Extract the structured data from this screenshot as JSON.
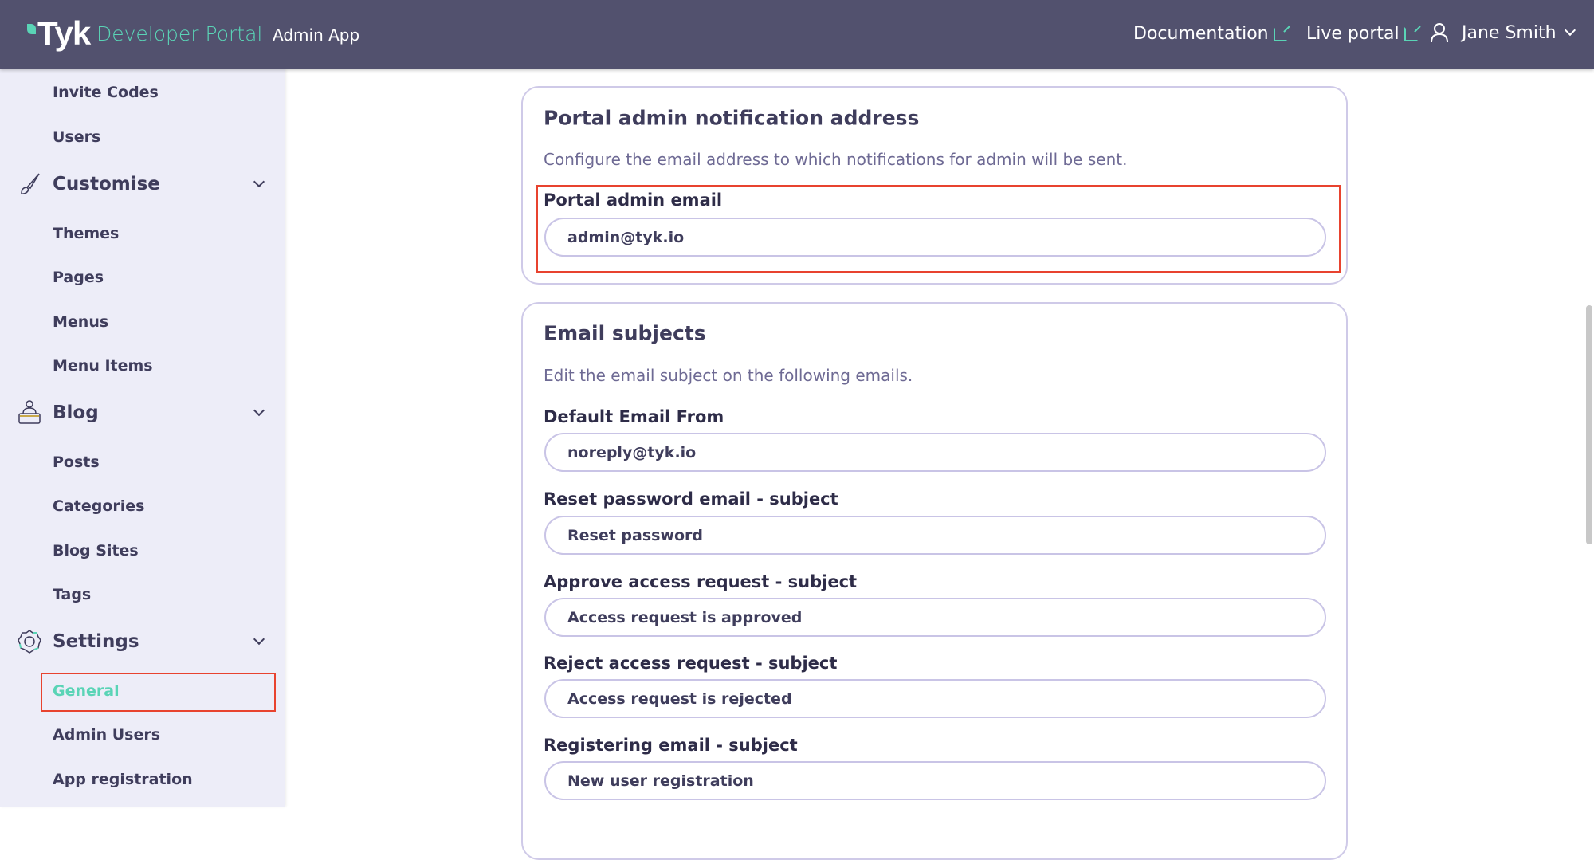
{
  "header": {
    "logo": "Tyk",
    "product": "Developer Portal",
    "app": "Admin App",
    "links": [
      {
        "label": "Documentation",
        "icon": "external-link-icon"
      },
      {
        "label": "Live portal",
        "icon": "external-link-icon"
      }
    ],
    "user": "Jane Smith"
  },
  "sidebar": {
    "items_top": [
      "Invite Codes",
      "Users"
    ],
    "customise": {
      "label": "Customise",
      "icon": "brush-icon",
      "items": [
        "Themes",
        "Pages",
        "Menus",
        "Menu Items"
      ]
    },
    "blog": {
      "label": "Blog",
      "icon": "blog-icon",
      "items": [
        "Posts",
        "Categories",
        "Blog Sites",
        "Tags"
      ]
    },
    "settings": {
      "label": "Settings",
      "icon": "gear-icon",
      "items": [
        "General",
        "Admin Users",
        "App registration"
      ],
      "active": "General"
    }
  },
  "notification": {
    "title": "Portal admin notification address",
    "description": "Configure the email address to which notifications for admin will be sent.",
    "label": "Portal admin email",
    "value": "admin@tyk.io"
  },
  "subjects": {
    "title": "Email subjects",
    "description": "Edit the email subject on the following emails.",
    "fields": [
      {
        "label": "Default Email From",
        "value": "noreply@tyk.io"
      },
      {
        "label": "Reset password email - subject",
        "value": "Reset password"
      },
      {
        "label": "Approve access request - subject",
        "value": "Access request is approved"
      },
      {
        "label": "Reject access request - subject",
        "value": "Access request is rejected"
      },
      {
        "label": "Registering email - subject",
        "value": "New user registration"
      }
    ]
  },
  "colors": {
    "header": "#52516e",
    "accent": "#5ad4b6",
    "sidebar": "#ededf8",
    "highlight": "#e8432f"
  }
}
